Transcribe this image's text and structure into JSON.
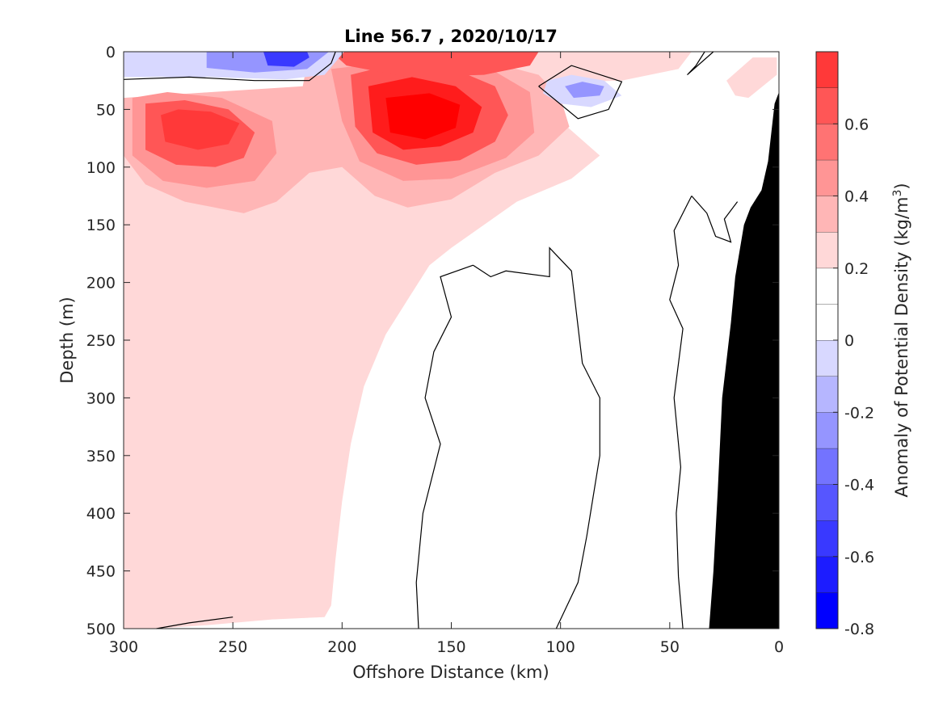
{
  "chart_data": {
    "type": "heatmap",
    "title": "Line 56.7 , 2020/10/17",
    "xlabel": "Offshore Distance (km)",
    "ylabel": "Depth (m)",
    "colorbar_label": "Anomaly of Potential Density (kg/m3)",
    "colorbar_label_parts": [
      "Anomaly of Potential Density (kg/m",
      "3",
      ")"
    ],
    "xlim": [
      300,
      0
    ],
    "ylim": [
      500,
      0
    ],
    "x_reversed": true,
    "y_reversed": true,
    "xticks": [
      300,
      250,
      200,
      150,
      100,
      50,
      0
    ],
    "yticks": [
      0,
      50,
      100,
      150,
      200,
      250,
      300,
      350,
      400,
      450,
      500
    ],
    "clim": [
      -0.8,
      0.8
    ],
    "colorbar_ticks": [
      -0.8,
      -0.6,
      -0.4,
      -0.2,
      0,
      0.2,
      0.4,
      0.6
    ],
    "levels": [
      {
        "lo": -0.8,
        "hi": -0.7,
        "color": "#0000ff"
      },
      {
        "lo": -0.7,
        "hi": -0.6,
        "color": "#1c1cff"
      },
      {
        "lo": -0.6,
        "hi": -0.5,
        "color": "#3939ff"
      },
      {
        "lo": -0.5,
        "hi": -0.4,
        "color": "#5656ff"
      },
      {
        "lo": -0.4,
        "hi": -0.3,
        "color": "#7373ff"
      },
      {
        "lo": -0.3,
        "hi": -0.2,
        "color": "#9595ff"
      },
      {
        "lo": -0.2,
        "hi": -0.1,
        "color": "#b6b6ff"
      },
      {
        "lo": -0.1,
        "hi": 0.0,
        "color": "#d8d8ff"
      },
      {
        "lo": 0.0,
        "hi": 0.1,
        "color": "#ffffff"
      },
      {
        "lo": 0.1,
        "hi": 0.2,
        "color": "#ffffff"
      },
      {
        "lo": 0.2,
        "hi": 0.3,
        "color": "#ffd8d8"
      },
      {
        "lo": 0.3,
        "hi": 0.4,
        "color": "#ffb6b6"
      },
      {
        "lo": 0.4,
        "hi": 0.5,
        "color": "#ff9595"
      },
      {
        "lo": 0.5,
        "hi": 0.6,
        "color": "#ff7373"
      },
      {
        "lo": 0.6,
        "hi": 0.7,
        "color": "#ff5656"
      },
      {
        "lo": 0.7,
        "hi": 0.8,
        "color": "#ff3939"
      },
      {
        "lo": 0.8,
        "hi": 0.9,
        "color": "#ff1c1c"
      },
      {
        "lo": 0.9,
        "hi": 1.0,
        "color": "#ff0000"
      }
    ],
    "regions": [
      {
        "name": "pale-pink-body",
        "color": "#ffd8d8",
        "points": [
          [
            300,
            60
          ],
          [
            260,
            45
          ],
          [
            220,
            40
          ],
          [
            180,
            40
          ],
          [
            140,
            45
          ],
          [
            100,
            60
          ],
          [
            82,
            90
          ],
          [
            95,
            110
          ],
          [
            120,
            130
          ],
          [
            135,
            150
          ],
          [
            150,
            170
          ],
          [
            160,
            185
          ],
          [
            170,
            215
          ],
          [
            180,
            245
          ],
          [
            190,
            290
          ],
          [
            196,
            340
          ],
          [
            200,
            390
          ],
          [
            203,
            440
          ],
          [
            205,
            480
          ],
          [
            208,
            490
          ],
          [
            232,
            492
          ],
          [
            262,
            497
          ],
          [
            285,
            500
          ],
          [
            300,
            500
          ],
          [
            300,
            70
          ]
        ]
      },
      {
        "name": "coast-pink-patch",
        "color": "#ffd8d8",
        "points": [
          [
            24,
            25
          ],
          [
            12,
            5
          ],
          [
            1,
            5
          ],
          [
            1,
            20
          ],
          [
            14,
            40
          ],
          [
            20,
            38
          ]
        ]
      },
      {
        "name": "top-pink-strip",
        "color": "#ffd8d8",
        "points": [
          [
            215,
            0
          ],
          [
            40,
            0
          ],
          [
            46,
            15
          ],
          [
            72,
            25
          ],
          [
            120,
            28
          ],
          [
            160,
            30
          ],
          [
            200,
            28
          ]
        ]
      },
      {
        "name": "pink-upper-band",
        "color": "#ffb6b6",
        "points": [
          [
            300,
            40
          ],
          [
            300,
            90
          ],
          [
            290,
            115
          ],
          [
            272,
            130
          ],
          [
            245,
            140
          ],
          [
            230,
            130
          ],
          [
            215,
            105
          ],
          [
            200,
            100
          ],
          [
            185,
            125
          ],
          [
            170,
            135
          ],
          [
            150,
            128
          ],
          [
            130,
            105
          ],
          [
            110,
            90
          ],
          [
            96,
            65
          ],
          [
            100,
            40
          ],
          [
            110,
            20
          ],
          [
            150,
            0
          ],
          [
            215,
            0
          ],
          [
            218,
            30
          ],
          [
            260,
            35
          ]
        ]
      },
      {
        "name": "pink-lobe-left",
        "color": "#ff9595",
        "points": [
          [
            296,
            40
          ],
          [
            296,
            90
          ],
          [
            282,
            112
          ],
          [
            262,
            118
          ],
          [
            240,
            112
          ],
          [
            230,
            88
          ],
          [
            232,
            60
          ],
          [
            255,
            40
          ],
          [
            280,
            35
          ]
        ]
      },
      {
        "name": "pink-lobe-right",
        "color": "#ff9595",
        "points": [
          [
            205,
            15
          ],
          [
            200,
            60
          ],
          [
            192,
            95
          ],
          [
            172,
            112
          ],
          [
            150,
            110
          ],
          [
            125,
            92
          ],
          [
            112,
            70
          ],
          [
            114,
            35
          ],
          [
            132,
            15
          ],
          [
            160,
            5
          ]
        ]
      },
      {
        "name": "red-lobe-left",
        "color": "#ff5656",
        "points": [
          [
            290,
            45
          ],
          [
            290,
            85
          ],
          [
            276,
            98
          ],
          [
            258,
            100
          ],
          [
            245,
            92
          ],
          [
            240,
            70
          ],
          [
            252,
            50
          ],
          [
            272,
            42
          ]
        ]
      },
      {
        "name": "red-lobe-right",
        "color": "#ff5656",
        "points": [
          [
            196,
            20
          ],
          [
            194,
            65
          ],
          [
            184,
            88
          ],
          [
            166,
            98
          ],
          [
            146,
            94
          ],
          [
            130,
            78
          ],
          [
            124,
            55
          ],
          [
            130,
            30
          ],
          [
            150,
            14
          ],
          [
            175,
            10
          ]
        ]
      },
      {
        "name": "deep-red-left",
        "color": "#ff3939",
        "points": [
          [
            283,
            55
          ],
          [
            281,
            78
          ],
          [
            266,
            85
          ],
          [
            252,
            80
          ],
          [
            247,
            62
          ],
          [
            260,
            52
          ],
          [
            275,
            50
          ]
        ]
      },
      {
        "name": "deep-red-right",
        "color": "#ff1c1c",
        "points": [
          [
            188,
            30
          ],
          [
            186,
            70
          ],
          [
            172,
            85
          ],
          [
            155,
            82
          ],
          [
            140,
            70
          ],
          [
            136,
            48
          ],
          [
            148,
            30
          ],
          [
            168,
            22
          ]
        ]
      },
      {
        "name": "deep-red-right-core",
        "color": "#ff0000",
        "points": [
          [
            180,
            40
          ],
          [
            178,
            70
          ],
          [
            162,
            76
          ],
          [
            148,
            66
          ],
          [
            146,
            46
          ],
          [
            160,
            36
          ]
        ]
      },
      {
        "name": "red-top-strip",
        "color": "#ff5656",
        "points": [
          [
            205,
            0
          ],
          [
            110,
            0
          ],
          [
            114,
            12
          ],
          [
            135,
            20
          ],
          [
            170,
            22
          ],
          [
            198,
            12
          ]
        ]
      },
      {
        "name": "blue-top-pale",
        "color": "#d8d8ff",
        "points": [
          [
            300,
            0
          ],
          [
            300,
            22
          ],
          [
            262,
            22
          ],
          [
            226,
            24
          ],
          [
            208,
            20
          ],
          [
            199,
            0
          ]
        ]
      },
      {
        "name": "blue-top-mid",
        "color": "#9595ff",
        "points": [
          [
            262,
            0
          ],
          [
            262,
            14
          ],
          [
            240,
            18
          ],
          [
            216,
            15
          ],
          [
            206,
            0
          ]
        ]
      },
      {
        "name": "blue-top-core",
        "color": "#3939ff",
        "points": [
          [
            236,
            0
          ],
          [
            234,
            12
          ],
          [
            222,
            13
          ],
          [
            215,
            5
          ],
          [
            216,
            0
          ]
        ]
      },
      {
        "name": "blue-small-pale",
        "color": "#d8d8ff",
        "points": [
          [
            106,
            25
          ],
          [
            95,
            20
          ],
          [
            80,
            25
          ],
          [
            72,
            38
          ],
          [
            86,
            48
          ],
          [
            100,
            45
          ],
          [
            108,
            36
          ]
        ]
      },
      {
        "name": "blue-small-core",
        "color": "#9595ff",
        "points": [
          [
            98,
            30
          ],
          [
            90,
            26
          ],
          [
            80,
            30
          ],
          [
            82,
            38
          ],
          [
            94,
            40
          ]
        ]
      }
    ],
    "contours": [
      {
        "name": "zero-contour-top",
        "points": [
          [
            300,
            24
          ],
          [
            270,
            22
          ],
          [
            240,
            25
          ],
          [
            215,
            25
          ],
          [
            205,
            10
          ],
          [
            203,
            0
          ]
        ]
      },
      {
        "name": "zero-contour-right-loop",
        "points": [
          [
            110,
            30
          ],
          [
            95,
            12
          ],
          [
            72,
            26
          ],
          [
            78,
            50
          ],
          [
            92,
            58
          ],
          [
            110,
            30
          ]
        ]
      },
      {
        "name": "zero-contour-coast",
        "points": [
          [
            30,
            0
          ],
          [
            42,
            20
          ],
          [
            38,
            12
          ],
          [
            34,
            0
          ]
        ]
      },
      {
        "name": "zero-contour-interior",
        "points": [
          [
            140,
            185
          ],
          [
            155,
            195
          ],
          [
            150,
            230
          ],
          [
            158,
            260
          ],
          [
            162,
            300
          ],
          [
            155,
            340
          ],
          [
            163,
            400
          ],
          [
            166,
            460
          ],
          [
            165,
            500
          ]
        ]
      },
      {
        "name": "zero-contour-interior-2",
        "points": [
          [
            140,
            185
          ],
          [
            132,
            195
          ],
          [
            125,
            190
          ],
          [
            105,
            195
          ],
          [
            105,
            170
          ],
          [
            95,
            190
          ],
          [
            90,
            270
          ],
          [
            82,
            300
          ],
          [
            82,
            350
          ],
          [
            88,
            420
          ],
          [
            92,
            460
          ],
          [
            102,
            500
          ]
        ]
      },
      {
        "name": "zero-contour-slope",
        "points": [
          [
            40,
            125
          ],
          [
            48,
            155
          ],
          [
            46,
            185
          ],
          [
            50,
            215
          ],
          [
            44,
            240
          ],
          [
            48,
            300
          ],
          [
            45,
            360
          ],
          [
            47,
            400
          ],
          [
            46,
            455
          ],
          [
            44,
            500
          ]
        ]
      },
      {
        "name": "zero-contour-slope-2",
        "points": [
          [
            40,
            125
          ],
          [
            33,
            140
          ],
          [
            29,
            160
          ],
          [
            22,
            165
          ],
          [
            25,
            145
          ],
          [
            19,
            130
          ]
        ]
      },
      {
        "name": "zero-contour-bottom",
        "points": [
          [
            285,
            500
          ],
          [
            270,
            495
          ],
          [
            250,
            490
          ]
        ]
      }
    ],
    "bathymetry": {
      "color": "#000000",
      "points": [
        [
          0,
          35
        ],
        [
          2,
          45
        ],
        [
          5,
          95
        ],
        [
          8,
          120
        ],
        [
          13,
          135
        ],
        [
          16,
          150
        ],
        [
          20,
          195
        ],
        [
          22,
          235
        ],
        [
          26,
          300
        ],
        [
          28,
          380
        ],
        [
          30,
          450
        ],
        [
          32,
          500
        ],
        [
          0,
          500
        ]
      ]
    }
  }
}
